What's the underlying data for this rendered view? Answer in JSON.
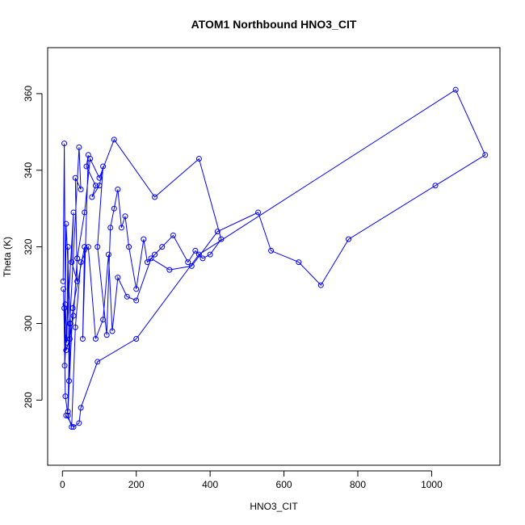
{
  "chart_data": {
    "type": "line",
    "title": "ATOM1 Northbound HNO3_CIT",
    "xlabel": "HNO3_CIT",
    "ylabel": "Theta (K)",
    "xlim": [
      -40,
      1185
    ],
    "ylim": [
      263,
      372
    ],
    "xticks": [
      0,
      200,
      400,
      600,
      800,
      1000
    ],
    "yticks": [
      280,
      300,
      320,
      340,
      360
    ],
    "grid": false,
    "legend": "none",
    "color": "#0000ff",
    "marker": "open-circle",
    "series": [
      {
        "x": [
          2,
          5,
          8,
          12,
          15,
          18,
          22,
          10,
          6,
          30,
          25,
          40,
          35,
          50,
          45,
          20,
          15,
          28,
          60,
          55,
          70,
          65,
          90,
          80,
          100,
          110,
          95,
          120,
          130,
          140,
          150,
          160,
          170,
          180,
          200,
          220,
          230,
          250,
          270,
          300,
          340,
          360,
          380,
          400,
          430,
          370,
          250,
          140,
          100,
          75,
          60,
          40,
          30,
          20,
          10,
          5,
          3,
          8,
          15,
          25,
          35,
          50,
          70,
          90,
          110,
          125,
          135,
          150,
          175,
          200,
          240,
          290,
          350,
          420,
          530,
          565,
          640,
          700,
          775,
          1010,
          1145,
          1065,
          370,
          200,
          95,
          50,
          45,
          30,
          10
        ],
        "y": [
          311,
          347,
          305,
          295,
          320,
          285,
          300,
          326,
          289,
          329,
          316,
          311,
          338,
          335,
          346,
          300,
          277,
          304,
          320,
          296,
          344,
          341,
          336,
          333,
          336,
          341,
          320,
          297,
          325,
          330,
          335,
          325,
          328,
          320,
          309,
          322,
          316,
          318,
          320,
          323,
          316,
          319,
          317,
          318,
          322,
          343,
          333,
          348,
          338,
          343,
          329,
          317,
          302,
          296,
          293,
          304,
          309,
          281,
          276,
          273,
          299,
          316,
          320,
          296,
          301,
          318,
          298,
          312,
          307,
          306,
          317,
          314,
          315,
          324,
          329,
          319,
          316,
          310,
          322,
          336,
          344,
          361,
          318,
          296,
          290,
          278,
          274,
          273,
          276
        ]
      }
    ]
  }
}
